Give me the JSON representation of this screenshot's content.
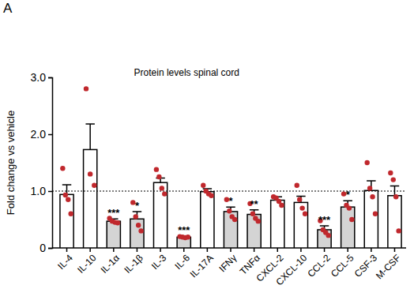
{
  "chart_data": {
    "type": "bar",
    "panel_label": "A",
    "title": "Protein levels spinal cord",
    "y_label": "Fold change vs vehicle",
    "categories": [
      "IL-4",
      "IL-10",
      "IL-1α",
      "IL-1β",
      "IL-3",
      "IL-6",
      "IL-17A",
      "IFNγ",
      "TNFα",
      "CXCL-2",
      "CXCL-10",
      "CCL-2",
      "CCL-5",
      "CSF-3",
      "M-CSF"
    ],
    "values": [
      0.94,
      1.73,
      0.47,
      0.51,
      1.15,
      0.19,
      0.99,
      0.64,
      0.59,
      0.84,
      0.8,
      0.32,
      0.72,
      1.01,
      0.92
    ],
    "errors": [
      0.17,
      0.45,
      0.04,
      0.13,
      0.08,
      0.02,
      0.05,
      0.08,
      0.08,
      0.06,
      0.11,
      0.07,
      0.11,
      0.17,
      0.17
    ],
    "points": [
      [
        1.4,
        0.93,
        0.85,
        0.6
      ],
      [
        2.8,
        1.3,
        1.1
      ],
      [
        0.52,
        0.47,
        0.45,
        0.44
      ],
      [
        0.8,
        0.55,
        0.4,
        0.3
      ],
      [
        1.38,
        1.25,
        1.05,
        0.95
      ],
      [
        0.2,
        0.19,
        0.18,
        0.19
      ],
      [
        1.1,
        1.0,
        0.95,
        0.92
      ],
      [
        0.85,
        0.65,
        0.55,
        0.5
      ],
      [
        0.78,
        0.6,
        0.52,
        0.47
      ],
      [
        0.9,
        0.88,
        0.82,
        0.75
      ],
      [
        1.1,
        0.85,
        0.7,
        0.6
      ],
      [
        0.48,
        0.32,
        0.27,
        0.22
      ],
      [
        0.95,
        0.75,
        0.7,
        0.5
      ],
      [
        1.5,
        1.05,
        0.9,
        0.6
      ],
      [
        1.32,
        1.2,
        0.9,
        0.3
      ]
    ],
    "significance": [
      null,
      null,
      "***",
      "*",
      null,
      "***",
      null,
      "*",
      "**",
      null,
      null,
      "***",
      "*",
      null,
      null
    ],
    "colors": [
      "#ffffff",
      "#ffffff",
      "#d4d4d4",
      "#d4d4d4",
      "#ffffff",
      "#d4d4d4",
      "#ffffff",
      "#d4d4d4",
      "#d4d4d4",
      "#ffffff",
      "#ffffff",
      "#d4d4d4",
      "#d4d4d4",
      "#ffffff",
      "#ffffff"
    ],
    "reference_line": 1,
    "ylim": [
      0,
      3
    ],
    "yticks": [
      0,
      {
        "value": 1,
        "label": "1.0"
      },
      {
        "value": 2,
        "label": "2.0"
      },
      {
        "value": 3,
        "label": "3.0"
      }
    ],
    "grid": false
  }
}
